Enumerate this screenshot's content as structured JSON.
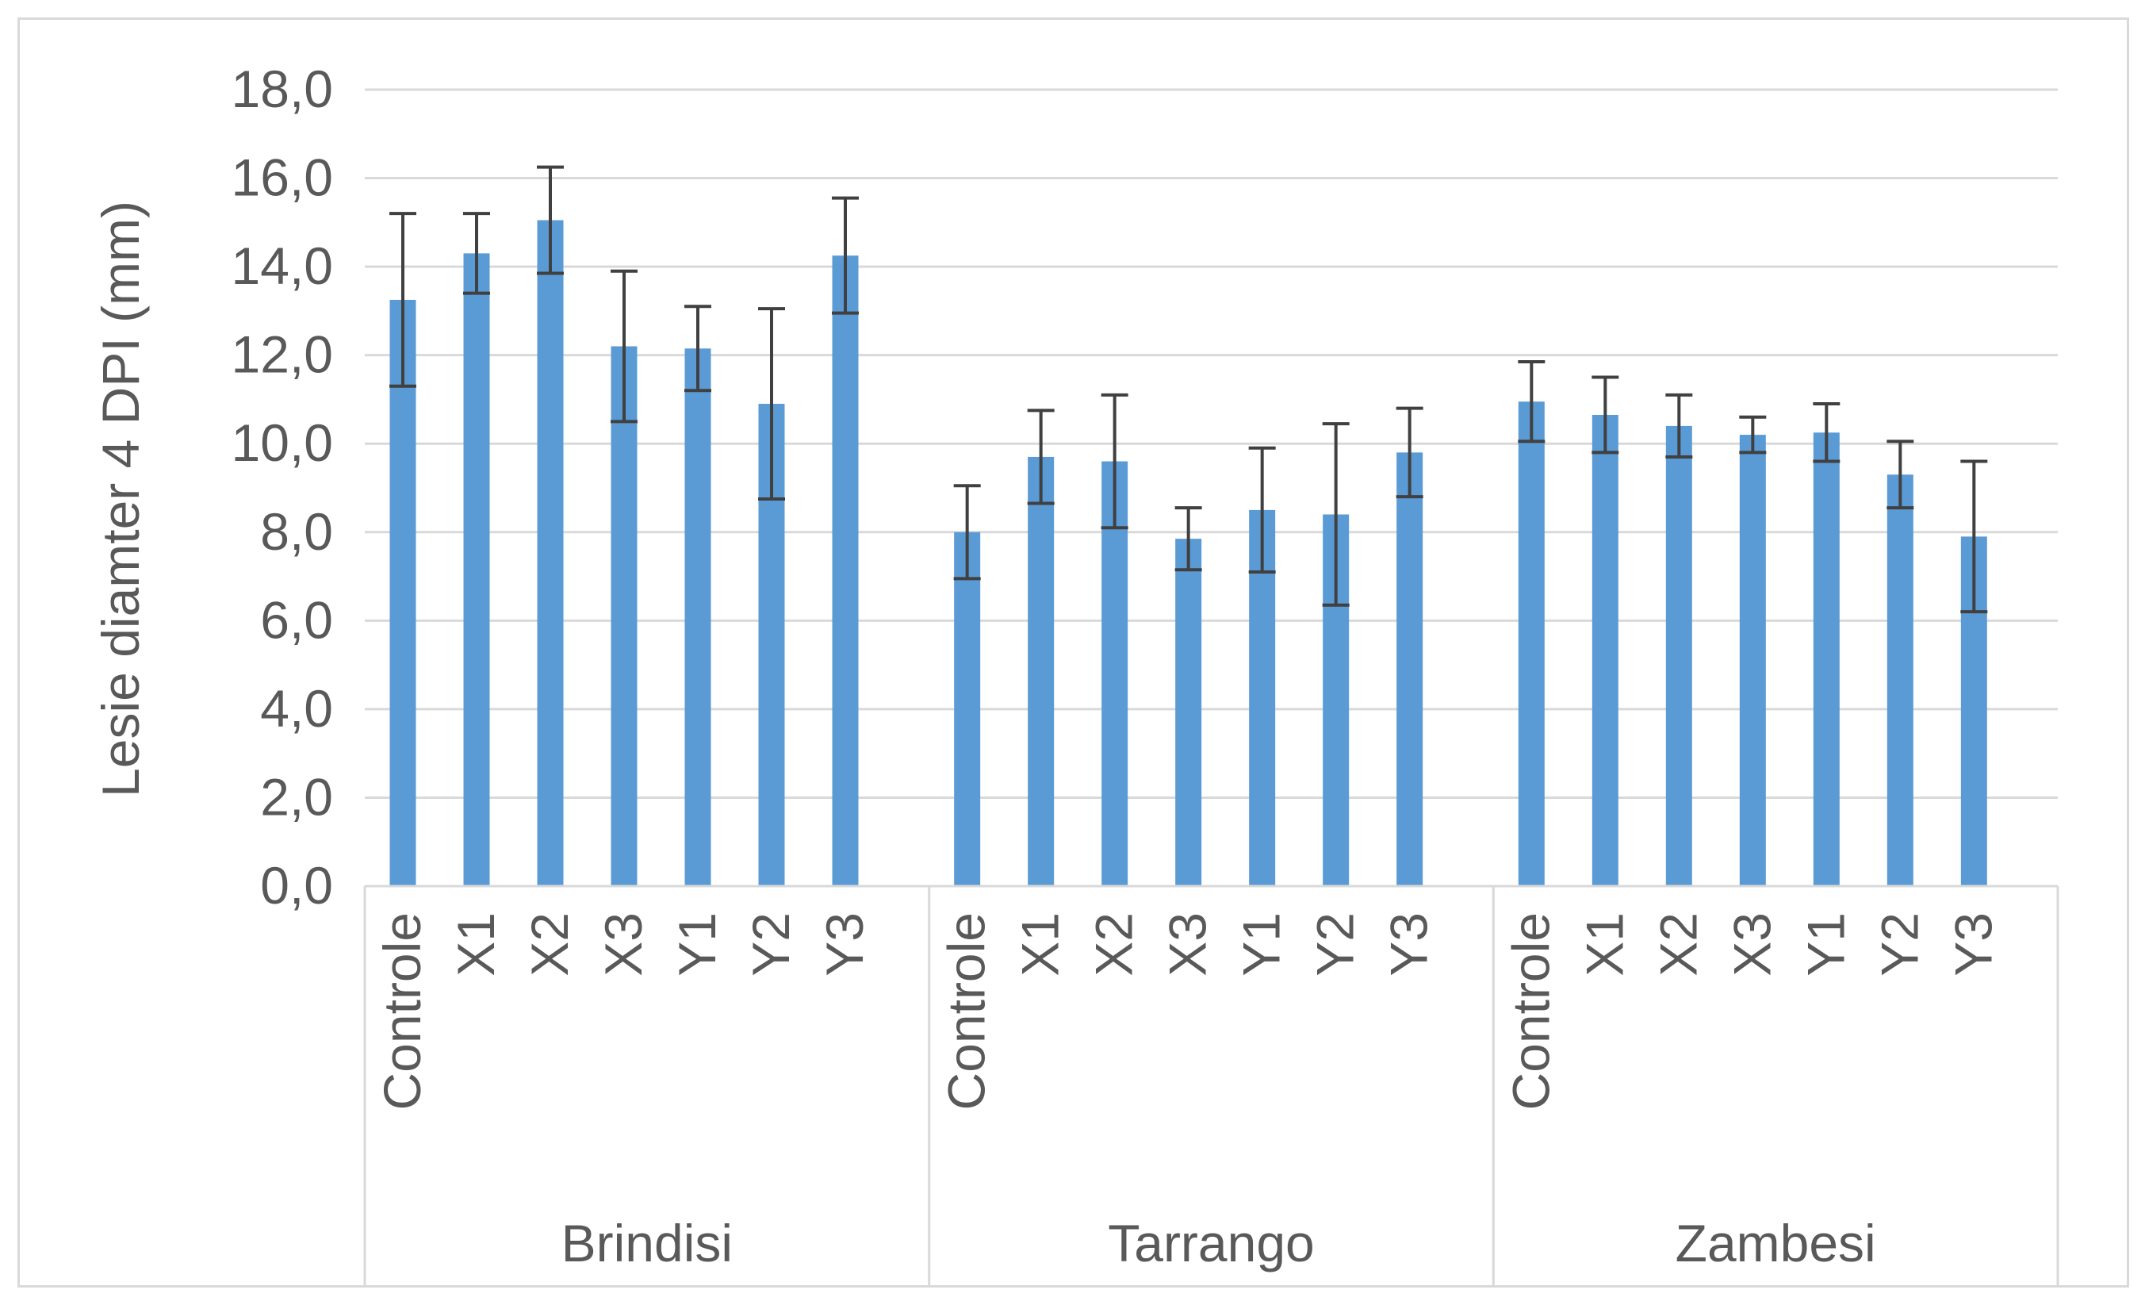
{
  "chart_data": {
    "type": "bar",
    "title": "",
    "ylabel": "Lesie diamter 4 DPI (mm)",
    "xlabel": "",
    "ylim": [
      0,
      18
    ],
    "yticks": [
      "0,0",
      "2,0",
      "4,0",
      "6,0",
      "8,0",
      "10,0",
      "12,0",
      "14,0",
      "16,0",
      "18,0"
    ],
    "ytick_values": [
      0,
      2,
      4,
      6,
      8,
      10,
      12,
      14,
      16,
      18
    ],
    "grid": true,
    "bar_color": "#5b9bd5",
    "error_color": "#404040",
    "groups": [
      {
        "name": "Brindisi",
        "categories": [
          "Controle",
          "X1",
          "X2",
          "X3",
          "Y1",
          "Y2",
          "Y3"
        ],
        "values": [
          13.25,
          14.3,
          15.05,
          12.2,
          12.15,
          10.9,
          14.25
        ],
        "errors": [
          1.95,
          0.9,
          1.2,
          1.7,
          0.95,
          2.15,
          1.3
        ]
      },
      {
        "name": "Tarrango",
        "categories": [
          "Controle",
          "X1",
          "X2",
          "X3",
          "Y1",
          "Y2",
          "Y3"
        ],
        "values": [
          8.0,
          9.7,
          9.6,
          7.85,
          8.5,
          8.4,
          9.8
        ],
        "errors": [
          1.05,
          1.05,
          1.5,
          0.7,
          1.4,
          2.05,
          1.0
        ]
      },
      {
        "name": "Zambesi",
        "categories": [
          "Controle",
          "X1",
          "X2",
          "X3",
          "Y1",
          "Y2",
          "Y3"
        ],
        "values": [
          10.95,
          10.65,
          10.4,
          10.2,
          10.25,
          9.3,
          7.9
        ],
        "errors": [
          0.9,
          0.85,
          0.7,
          0.4,
          0.65,
          0.75,
          1.7
        ]
      }
    ]
  }
}
